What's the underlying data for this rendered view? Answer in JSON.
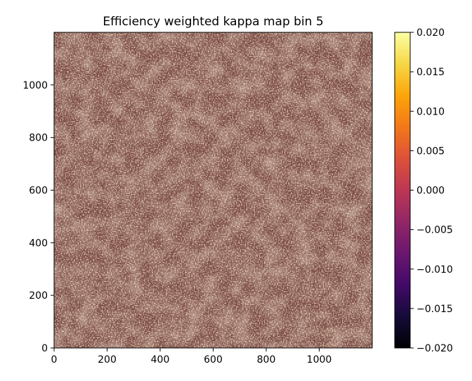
{
  "chart_data": {
    "type": "heatmap",
    "title": "Efficiency weighted kappa map bin 5",
    "xlabel": "",
    "ylabel": "",
    "xlim": [
      0,
      1200
    ],
    "ylim": [
      0,
      1200
    ],
    "x_ticks": [
      0,
      200,
      400,
      600,
      800,
      1000
    ],
    "y_ticks": [
      0,
      200,
      400,
      600,
      800,
      1000
    ],
    "x_tick_labels": [
      "0",
      "200",
      "400",
      "600",
      "800",
      "1000"
    ],
    "y_tick_labels": [
      "0",
      "200",
      "400",
      "600",
      "800",
      "1000"
    ],
    "colorbar": {
      "colormap": "inferno",
      "range": [
        -0.02,
        0.02
      ],
      "ticks": [
        0.02,
        0.015,
        0.01,
        0.005,
        0.0,
        -0.005,
        -0.01,
        -0.015,
        -0.02
      ],
      "tick_labels": [
        "0.020",
        "0.015",
        "0.010",
        "0.005",
        "0.000",
        "−0.005",
        "−0.010",
        "−0.015",
        "−0.020"
      ]
    },
    "grid": false
  }
}
